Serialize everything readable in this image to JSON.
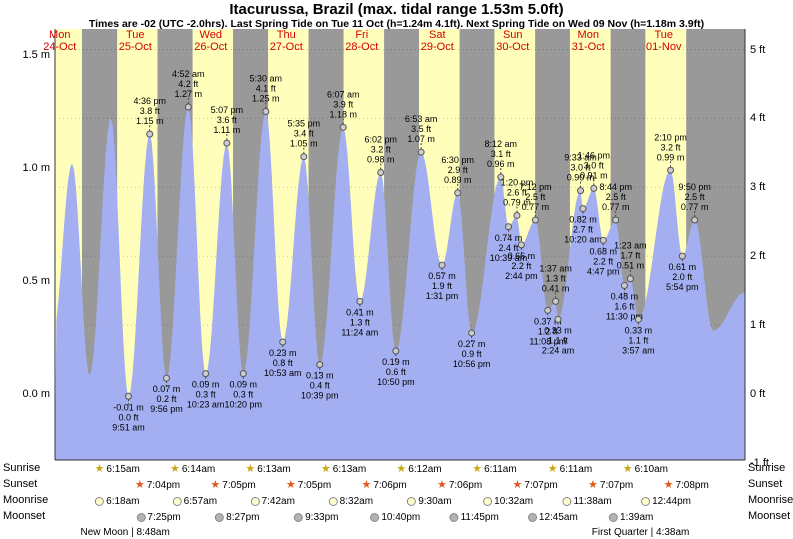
{
  "title": "Itacurussa, Brazil (max. tidal range 1.53m 5.0ft)",
  "subtitle": "Times are -02 (UTC -2.0hrs). Last Spring Tide on Tue 11 Oct (h=1.24m 4.1ft). Next Spring Tide on Wed 09 Nov (h=1.18m 3.9ft)",
  "chart_data": {
    "type": "area",
    "title": "Tide height forecast",
    "days": [
      {
        "dow": "Mon",
        "date": "24-Oct"
      },
      {
        "dow": "Tue",
        "date": "25-Oct"
      },
      {
        "dow": "Wed",
        "date": "26-Oct"
      },
      {
        "dow": "Thu",
        "date": "27-Oct"
      },
      {
        "dow": "Fri",
        "date": "28-Oct"
      },
      {
        "dow": "Sat",
        "date": "29-Oct"
      },
      {
        "dow": "Sun",
        "date": "30-Oct"
      },
      {
        "dow": "Mon",
        "date": "31-Oct"
      },
      {
        "dow": "Tue",
        "date": "01-Nov"
      }
    ],
    "y_axis_left": {
      "unit": "m",
      "ticks": [
        "1.5 m",
        "1.0 m",
        "0.5 m",
        "0.0 m"
      ],
      "values": [
        1.5,
        1.0,
        0.5,
        0.0
      ]
    },
    "y_axis_right": {
      "unit": "ft",
      "ticks": [
        "5 ft",
        "4 ft",
        "3 ft",
        "2 ft",
        "1 ft",
        "0 ft",
        "-1 ft"
      ],
      "values": [
        5,
        4,
        3,
        2,
        1,
        0,
        -1
      ]
    },
    "ylim_m": [
      -0.3,
      1.53
    ],
    "grid": "dotted-horizontal-ft",
    "tide_events": [
      {
        "day": 0,
        "time": "9:40 am",
        "m": "0.25",
        "type": "low",
        "labeled": false
      },
      {
        "day": 0,
        "time": "3:55 pm",
        "m": "1.02",
        "type": "high",
        "labeled": false
      },
      {
        "day": 0,
        "time": "9:30 pm",
        "m": "0.08",
        "type": "low",
        "labeled": false
      },
      {
        "day": 1,
        "time": "4:15 am",
        "m": "1.22",
        "type": "high",
        "labeled": false
      },
      {
        "day": 1,
        "time": "9:51 am",
        "m": "-0.01",
        "ft": "0.0",
        "type": "low",
        "labeled": true
      },
      {
        "day": 1,
        "time": "4:36 pm",
        "m": "1.15",
        "ft": "3.8",
        "type": "high",
        "labeled": true
      },
      {
        "day": 1,
        "time": "9:56 pm",
        "m": "0.07",
        "ft": "0.2",
        "type": "low",
        "labeled": true
      },
      {
        "day": 2,
        "time": "4:52 am",
        "m": "1.27",
        "ft": "4.2",
        "type": "high",
        "labeled": true
      },
      {
        "day": 2,
        "time": "10:23 am",
        "m": "0.09",
        "ft": "0.3",
        "type": "low",
        "labeled": true
      },
      {
        "day": 2,
        "time": "5:07 pm",
        "m": "1.11",
        "ft": "3.6",
        "type": "high",
        "labeled": true
      },
      {
        "day": 2,
        "time": "10:20 pm",
        "m": "0.09",
        "ft": "0.3",
        "type": "low",
        "labeled": true
      },
      {
        "day": 3,
        "time": "5:30 am",
        "m": "1.25",
        "ft": "4.1",
        "type": "high",
        "labeled": true
      },
      {
        "day": 3,
        "time": "10:53 am",
        "m": "0.23",
        "ft": "0.8",
        "type": "low",
        "labeled": true
      },
      {
        "day": 3,
        "time": "5:35 pm",
        "m": "1.05",
        "ft": "3.4",
        "type": "high",
        "labeled": true
      },
      {
        "day": 3,
        "time": "10:39 pm",
        "m": "0.13",
        "ft": "0.4",
        "type": "low",
        "labeled": true
      },
      {
        "day": 4,
        "time": "6:07 am",
        "m": "1.18",
        "ft": "3.9",
        "type": "high",
        "labeled": true
      },
      {
        "day": 4,
        "time": "11:24 am",
        "m": "0.41",
        "ft": "1.3",
        "type": "low",
        "labeled": true
      },
      {
        "day": 4,
        "time": "6:02 pm",
        "m": "0.98",
        "ft": "3.2",
        "type": "high",
        "labeled": true
      },
      {
        "day": 4,
        "time": "10:50 pm",
        "m": "0.19",
        "ft": "0.6",
        "type": "low",
        "labeled": true
      },
      {
        "day": 5,
        "time": "6:53 am",
        "m": "1.07",
        "ft": "3.5",
        "type": "high",
        "labeled": true
      },
      {
        "day": 5,
        "time": "1:31 pm",
        "m": "0.57",
        "ft": "1.9",
        "type": "low",
        "labeled": true
      },
      {
        "day": 5,
        "time": "6:30 pm",
        "m": "0.89",
        "ft": "2.9",
        "type": "high",
        "labeled": true
      },
      {
        "day": 5,
        "time": "10:56 pm",
        "m": "0.27",
        "ft": "0.9",
        "type": "low",
        "labeled": true
      },
      {
        "day": 6,
        "time": "8:12 am",
        "m": "0.96",
        "ft": "3.1",
        "type": "high",
        "labeled": true
      },
      {
        "day": 6,
        "time": "10:39 am",
        "m": "0.74",
        "ft": "2.4",
        "type": "low",
        "labeled": true
      },
      {
        "day": 6,
        "time": "1:20 pm",
        "m": "0.79",
        "ft": "2.6",
        "type": "high",
        "labeled": true
      },
      {
        "day": 6,
        "time": "2:44 pm",
        "m": "0.66",
        "ft": "2.2",
        "type": "low",
        "labeled": true
      },
      {
        "day": 6,
        "time": "7:12 pm",
        "m": "0.77",
        "ft": "2.5",
        "type": "high",
        "labeled": true
      },
      {
        "day": 6,
        "time": "11:08 pm",
        "m": "0.37",
        "ft": "1.2",
        "type": "low",
        "labeled": true
      },
      {
        "day": 7,
        "time": "1:37 am",
        "m": "0.41",
        "ft": "1.3",
        "type": "high",
        "labeled": true
      },
      {
        "day": 7,
        "time": "2:24 am",
        "m": "0.33",
        "ft": "1.1",
        "type": "low",
        "labeled": true
      },
      {
        "day": 7,
        "time": "9:33 am",
        "m": "0.90",
        "ft": "3.0",
        "type": "high",
        "labeled": true
      },
      {
        "day": 7,
        "time": "10:20 am",
        "m": "0.82",
        "ft": "2.7",
        "type": "low",
        "labeled": true
      },
      {
        "day": 7,
        "time": "1:46 pm",
        "m": "0.91",
        "ft": "3.0",
        "type": "high",
        "labeled": true
      },
      {
        "day": 7,
        "time": "4:47 pm",
        "m": "0.68",
        "ft": "2.2",
        "type": "low",
        "labeled": true
      },
      {
        "day": 7,
        "time": "8:44 pm",
        "m": "0.77",
        "ft": "2.5",
        "type": "high",
        "labeled": true
      },
      {
        "day": 7,
        "time": "11:30 pm",
        "m": "0.48",
        "ft": "1.6",
        "type": "low",
        "labeled": true
      },
      {
        "day": 8,
        "time": "1:23 am",
        "m": "0.51",
        "ft": "1.7",
        "type": "high",
        "labeled": true
      },
      {
        "day": 8,
        "time": "3:57 am",
        "m": "0.33",
        "ft": "1.1",
        "type": "low",
        "labeled": true
      },
      {
        "day": 8,
        "time": "2:10 pm",
        "m": "0.99",
        "ft": "3.2",
        "type": "high",
        "labeled": true
      },
      {
        "day": 8,
        "time": "5:54 pm",
        "m": "0.61",
        "ft": "2.0",
        "type": "low",
        "labeled": true
      },
      {
        "day": 8,
        "time": "9:50 pm",
        "m": "0.77",
        "ft": "2.5",
        "type": "high",
        "labeled": true
      },
      {
        "day": 9,
        "time": "3:40 am",
        "m": "0.28",
        "type": "low",
        "labeled": false
      },
      {
        "day": 9,
        "time": "1:50 pm",
        "m": "0.45",
        "type": "high",
        "labeled": false
      }
    ],
    "colors": {
      "day_band": "#ffffbb",
      "night_band": "#999999",
      "tide_area": "#a3aff0",
      "day_label": "#d40000",
      "label_text": "#000000",
      "axis_line": "#333333"
    }
  },
  "astro": {
    "rows": [
      {
        "name": "Sunrise",
        "icon": "sunrise-icon",
        "icon_glyph": "star",
        "icon_color": "#c9a814",
        "times": [
          "6:15am",
          "6:14am",
          "6:13am",
          "6:13am",
          "6:12am",
          "6:11am",
          "6:11am",
          "6:10am"
        ]
      },
      {
        "name": "Sunset",
        "icon": "sunset-icon",
        "icon_glyph": "star",
        "icon_color": "#e2571d",
        "times": [
          "7:04pm",
          "7:05pm",
          "7:05pm",
          "7:06pm",
          "7:06pm",
          "7:07pm",
          "7:07pm",
          "7:08pm"
        ]
      },
      {
        "name": "Moonrise",
        "icon": "moonrise-icon",
        "icon_glyph": "circle",
        "icon_color": "#ffffcc",
        "times": [
          "6:18am",
          "6:57am",
          "7:42am",
          "8:32am",
          "9:30am",
          "10:32am",
          "11:38am",
          "12:44pm"
        ]
      },
      {
        "name": "Moonset",
        "icon": "moonset-icon",
        "icon_glyph": "circle",
        "icon_color": "#b3b3b3",
        "times": [
          "7:25pm",
          "8:27pm",
          "9:33pm",
          "10:40pm",
          "11:45pm",
          "12:45am",
          "1:39am"
        ]
      }
    ],
    "moon_events": [
      {
        "name": "New Moon",
        "time": "8:48am",
        "day": 1
      },
      {
        "name": "First Quarter",
        "time": "4:38am",
        "day": 8
      }
    ]
  }
}
